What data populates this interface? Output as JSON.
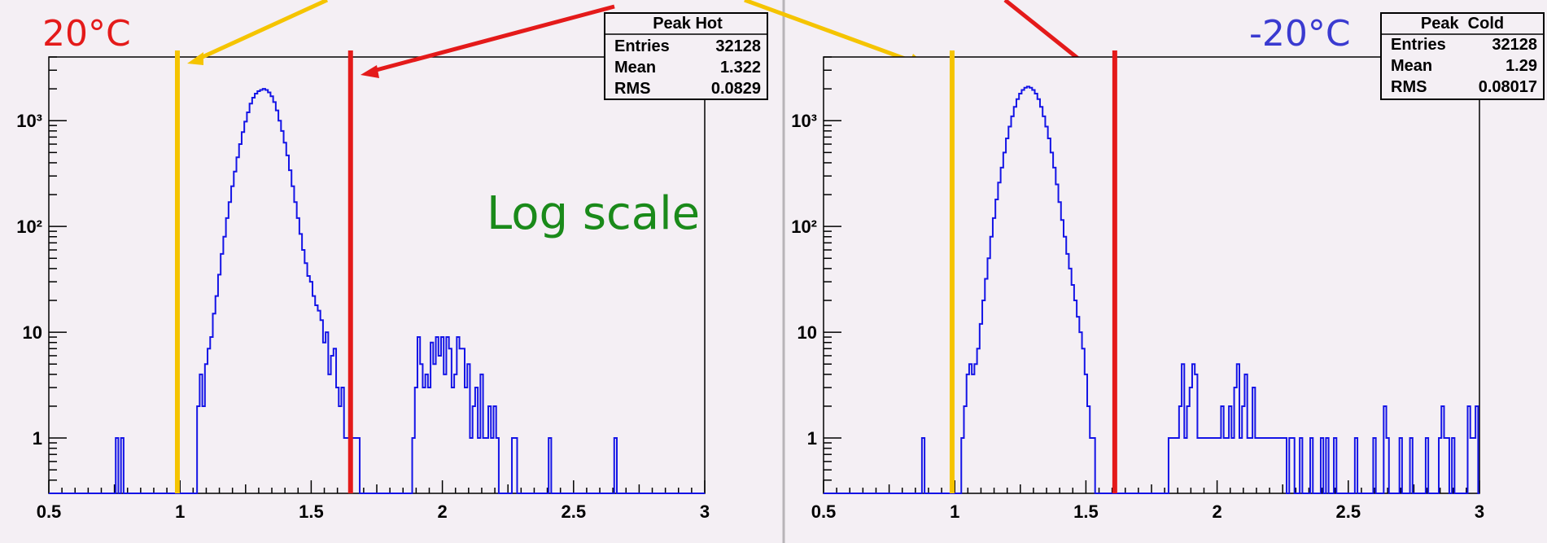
{
  "chart_data": [
    {
      "type": "line",
      "panel": "left",
      "histogram_name": "Peak Hot",
      "temperature_label": "20°C",
      "scale_note": "Log scale",
      "yscale": "log",
      "xlim": [
        0.5,
        3
      ],
      "ylim": [
        0.3,
        4000
      ],
      "x_ticks": [
        "0.5",
        "1",
        "1.5",
        "2",
        "2.5",
        "3"
      ],
      "y_ticks": [
        {
          "value": 1,
          "label": "1"
        },
        {
          "value": 10,
          "label": "10"
        },
        {
          "value": 100,
          "label": "10²"
        },
        {
          "value": 1000,
          "label": "10³"
        }
      ],
      "stats": [
        {
          "label": "Entries",
          "value": "32128"
        },
        {
          "label": "Mean",
          "value": "1.322"
        },
        {
          "label": "RMS",
          "value": "0.0829"
        }
      ],
      "cuts": [
        {
          "x": 0.99,
          "color": "#f5c400"
        },
        {
          "x": 1.65,
          "color": "#e41a1a"
        }
      ],
      "bins": [
        [
          0.76,
          1
        ],
        [
          0.78,
          1
        ],
        [
          1.07,
          2
        ],
        [
          1.08,
          4
        ],
        [
          1.09,
          2
        ],
        [
          1.1,
          5
        ],
        [
          1.11,
          7
        ],
        [
          1.12,
          9
        ],
        [
          1.13,
          15
        ],
        [
          1.14,
          22
        ],
        [
          1.15,
          35
        ],
        [
          1.16,
          55
        ],
        [
          1.17,
          80
        ],
        [
          1.18,
          120
        ],
        [
          1.19,
          170
        ],
        [
          1.2,
          240
        ],
        [
          1.21,
          330
        ],
        [
          1.22,
          450
        ],
        [
          1.23,
          600
        ],
        [
          1.24,
          780
        ],
        [
          1.25,
          980
        ],
        [
          1.26,
          1200
        ],
        [
          1.27,
          1450
        ],
        [
          1.28,
          1650
        ],
        [
          1.29,
          1800
        ],
        [
          1.3,
          1900
        ],
        [
          1.31,
          1950
        ],
        [
          1.32,
          2000
        ],
        [
          1.33,
          1950
        ],
        [
          1.34,
          1850
        ],
        [
          1.35,
          1700
        ],
        [
          1.36,
          1500
        ],
        [
          1.37,
          1250
        ],
        [
          1.38,
          1000
        ],
        [
          1.39,
          800
        ],
        [
          1.4,
          620
        ],
        [
          1.41,
          470
        ],
        [
          1.42,
          340
        ],
        [
          1.43,
          240
        ],
        [
          1.44,
          170
        ],
        [
          1.45,
          120
        ],
        [
          1.46,
          85
        ],
        [
          1.47,
          60
        ],
        [
          1.48,
          45
        ],
        [
          1.49,
          34
        ],
        [
          1.5,
          30
        ],
        [
          1.51,
          22
        ],
        [
          1.52,
          18
        ],
        [
          1.53,
          16
        ],
        [
          1.54,
          13
        ],
        [
          1.55,
          8
        ],
        [
          1.56,
          10
        ],
        [
          1.57,
          4
        ],
        [
          1.58,
          6
        ],
        [
          1.59,
          7
        ],
        [
          1.6,
          3
        ],
        [
          1.61,
          2
        ],
        [
          1.62,
          3
        ],
        [
          1.63,
          1
        ],
        [
          1.64,
          1
        ],
        [
          1.65,
          2
        ],
        [
          1.66,
          1
        ],
        [
          1.67,
          1
        ],
        [
          1.68,
          1
        ],
        [
          1.89,
          1
        ],
        [
          1.9,
          3
        ],
        [
          1.91,
          9
        ],
        [
          1.92,
          5
        ],
        [
          1.93,
          3
        ],
        [
          1.94,
          4
        ],
        [
          1.95,
          3
        ],
        [
          1.96,
          8
        ],
        [
          1.97,
          5
        ],
        [
          1.98,
          9
        ],
        [
          1.99,
          6
        ],
        [
          2.0,
          9
        ],
        [
          2.01,
          4
        ],
        [
          2.02,
          9
        ],
        [
          2.03,
          7
        ],
        [
          2.04,
          3
        ],
        [
          2.05,
          4
        ],
        [
          2.06,
          9
        ],
        [
          2.07,
          7
        ],
        [
          2.08,
          7
        ],
        [
          2.09,
          3
        ],
        [
          2.1,
          5
        ],
        [
          2.11,
          1
        ],
        [
          2.12,
          2
        ],
        [
          2.13,
          3
        ],
        [
          2.14,
          1
        ],
        [
          2.15,
          4
        ],
        [
          2.16,
          1
        ],
        [
          2.17,
          1
        ],
        [
          2.18,
          2
        ],
        [
          2.19,
          1
        ],
        [
          2.2,
          2
        ],
        [
          2.21,
          1
        ],
        [
          2.27,
          1
        ],
        [
          2.28,
          1
        ],
        [
          2.41,
          1
        ],
        [
          2.66,
          1
        ]
      ]
    },
    {
      "type": "line",
      "panel": "right",
      "histogram_name": "Peak  Cold",
      "temperature_label": "-20°C",
      "yscale": "log",
      "xlim": [
        0.5,
        3
      ],
      "ylim": [
        0.3,
        4000
      ],
      "x_ticks": [
        "0.5",
        "1",
        "1.5",
        "2",
        "2.5",
        "3"
      ],
      "y_ticks": [
        {
          "value": 1,
          "label": "1"
        },
        {
          "value": 10,
          "label": "10"
        },
        {
          "value": 100,
          "label": "10²"
        },
        {
          "value": 1000,
          "label": "10³"
        }
      ],
      "stats": [
        {
          "label": "Entries",
          "value": "32128"
        },
        {
          "label": "Mean",
          "value": "1.29"
        },
        {
          "label": "RMS",
          "value": "0.08017"
        }
      ],
      "cuts": [
        {
          "x": 0.99,
          "color": "#f5c400"
        },
        {
          "x": 1.61,
          "color": "#e41a1a"
        }
      ],
      "bins": [
        [
          0.88,
          1
        ],
        [
          1.03,
          1
        ],
        [
          1.04,
          2
        ],
        [
          1.05,
          4
        ],
        [
          1.06,
          5
        ],
        [
          1.07,
          4
        ],
        [
          1.08,
          5
        ],
        [
          1.09,
          7
        ],
        [
          1.1,
          12
        ],
        [
          1.11,
          20
        ],
        [
          1.12,
          32
        ],
        [
          1.13,
          50
        ],
        [
          1.14,
          80
        ],
        [
          1.15,
          120
        ],
        [
          1.16,
          180
        ],
        [
          1.17,
          260
        ],
        [
          1.18,
          360
        ],
        [
          1.19,
          500
        ],
        [
          1.2,
          680
        ],
        [
          1.21,
          880
        ],
        [
          1.22,
          1100
        ],
        [
          1.23,
          1350
        ],
        [
          1.24,
          1600
        ],
        [
          1.25,
          1800
        ],
        [
          1.26,
          1950
        ],
        [
          1.27,
          2050
        ],
        [
          1.28,
          2100
        ],
        [
          1.29,
          2050
        ],
        [
          1.3,
          1950
        ],
        [
          1.31,
          1800
        ],
        [
          1.32,
          1600
        ],
        [
          1.33,
          1350
        ],
        [
          1.34,
          1100
        ],
        [
          1.35,
          880
        ],
        [
          1.36,
          680
        ],
        [
          1.37,
          500
        ],
        [
          1.38,
          360
        ],
        [
          1.39,
          250
        ],
        [
          1.4,
          170
        ],
        [
          1.41,
          115
        ],
        [
          1.42,
          80
        ],
        [
          1.43,
          55
        ],
        [
          1.44,
          40
        ],
        [
          1.45,
          28
        ],
        [
          1.46,
          20
        ],
        [
          1.47,
          14
        ],
        [
          1.48,
          10
        ],
        [
          1.49,
          7
        ],
        [
          1.5,
          4
        ],
        [
          1.51,
          2
        ],
        [
          1.52,
          1
        ],
        [
          1.53,
          1
        ],
        [
          1.82,
          1
        ],
        [
          1.83,
          1
        ],
        [
          1.84,
          1
        ],
        [
          1.85,
          1
        ],
        [
          1.86,
          2
        ],
        [
          1.87,
          5
        ],
        [
          1.88,
          1
        ],
        [
          1.89,
          2
        ],
        [
          1.9,
          3
        ],
        [
          1.91,
          5
        ],
        [
          1.92,
          4
        ],
        [
          1.93,
          1
        ],
        [
          1.94,
          1
        ],
        [
          1.95,
          1
        ],
        [
          1.96,
          1
        ],
        [
          1.97,
          1
        ],
        [
          1.98,
          1
        ],
        [
          1.99,
          1
        ],
        [
          2.0,
          1
        ],
        [
          2.01,
          1
        ],
        [
          2.02,
          2
        ],
        [
          2.03,
          1
        ],
        [
          2.04,
          1
        ],
        [
          2.05,
          2
        ],
        [
          2.06,
          1
        ],
        [
          2.07,
          3
        ],
        [
          2.08,
          5
        ],
        [
          2.09,
          1
        ],
        [
          2.1,
          2
        ],
        [
          2.11,
          4
        ],
        [
          2.12,
          1
        ],
        [
          2.13,
          1
        ],
        [
          2.14,
          3
        ],
        [
          2.15,
          1
        ],
        [
          2.16,
          1
        ],
        [
          2.17,
          1
        ],
        [
          2.18,
          1
        ],
        [
          2.19,
          1
        ],
        [
          2.2,
          1
        ],
        [
          2.21,
          1
        ],
        [
          2.22,
          1
        ],
        [
          2.23,
          1
        ],
        [
          2.24,
          1
        ],
        [
          2.25,
          1
        ],
        [
          2.26,
          1
        ],
        [
          2.28,
          1
        ],
        [
          2.29,
          1
        ],
        [
          2.32,
          1
        ],
        [
          2.36,
          1
        ],
        [
          2.4,
          1
        ],
        [
          2.42,
          1
        ],
        [
          2.45,
          1
        ],
        [
          2.53,
          1
        ],
        [
          2.6,
          1
        ],
        [
          2.64,
          2
        ],
        [
          2.65,
          1
        ],
        [
          2.7,
          1
        ],
        [
          2.74,
          1
        ],
        [
          2.8,
          1
        ],
        [
          2.85,
          1
        ],
        [
          2.86,
          2
        ],
        [
          2.87,
          1
        ],
        [
          2.88,
          1
        ],
        [
          2.9,
          1
        ],
        [
          2.96,
          2
        ],
        [
          2.97,
          1
        ],
        [
          2.98,
          1
        ],
        [
          2.99,
          2
        ]
      ]
    }
  ]
}
